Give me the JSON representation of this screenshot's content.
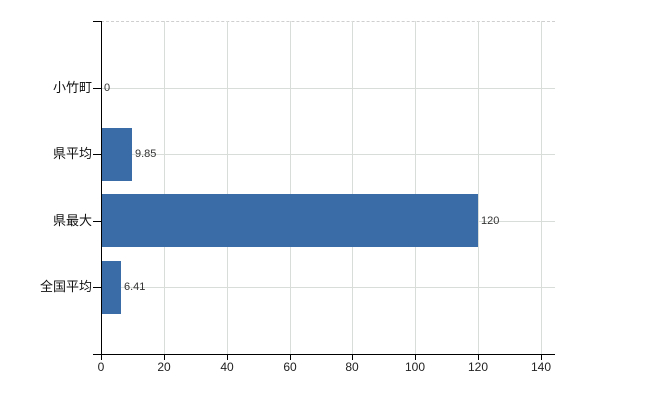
{
  "chart_data": {
    "type": "bar",
    "orientation": "horizontal",
    "title": "",
    "xlabel": "",
    "ylabel": "",
    "categories": [
      "小竹町",
      "県平均",
      "県最大",
      "全国平均"
    ],
    "values": [
      0,
      9.85,
      120,
      6.41
    ],
    "value_labels": [
      "0",
      "9.85",
      "120",
      "6.41"
    ],
    "x_ticks": [
      0,
      20,
      40,
      60,
      80,
      100,
      120,
      140
    ],
    "x_tick_labels": [
      "0",
      "20",
      "40",
      "60",
      "80",
      "100",
      "120",
      "140"
    ],
    "xlim": [
      0,
      144.5
    ],
    "grid": true,
    "legend": "none",
    "colors": {
      "bar": "#3a6ca8",
      "gridline": "#d9ddd9",
      "axis": "#000000",
      "tick_text": "#222222",
      "value_text": "#333333",
      "background": "#ffffff"
    }
  }
}
